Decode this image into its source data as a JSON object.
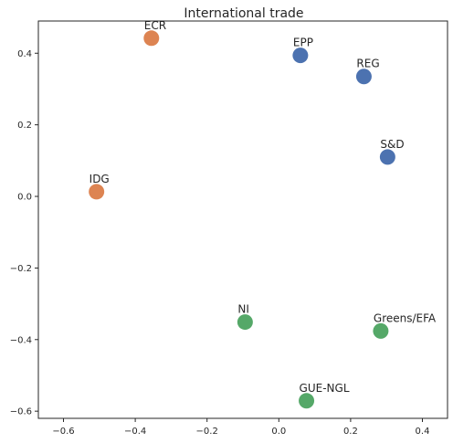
{
  "chart_data": {
    "type": "scatter",
    "title": "International trade",
    "xlabel": "",
    "ylabel": "",
    "xlim": [
      -0.67,
      0.47
    ],
    "ylim": [
      -0.62,
      0.49
    ],
    "x_ticks": [
      "−0.6",
      "−0.4",
      "−0.2",
      "0.0",
      "0.2",
      "0.4"
    ],
    "x_tick_values": [
      -0.6,
      -0.4,
      -0.2,
      0.0,
      0.2,
      0.4
    ],
    "y_ticks": [
      "−0.6",
      "−0.4",
      "−0.2",
      "0.0",
      "0.2",
      "0.4"
    ],
    "y_tick_values": [
      -0.6,
      -0.4,
      -0.2,
      0.0,
      0.2,
      0.4
    ],
    "grid": false,
    "points": [
      {
        "label": "ECR",
        "x": -0.355,
        "y": 0.442,
        "color": "#dd8452"
      },
      {
        "label": "EPP",
        "x": 0.06,
        "y": 0.394,
        "color": "#4c72b0"
      },
      {
        "label": "REG",
        "x": 0.237,
        "y": 0.335,
        "color": "#4c72b0"
      },
      {
        "label": "S&D",
        "x": 0.303,
        "y": 0.11,
        "color": "#4c72b0"
      },
      {
        "label": "IDG",
        "x": -0.508,
        "y": 0.013,
        "color": "#dd8452"
      },
      {
        "label": "NI",
        "x": -0.094,
        "y": -0.351,
        "color": "#55a868"
      },
      {
        "label": "Greens/EFA",
        "x": 0.284,
        "y": -0.376,
        "color": "#55a868"
      },
      {
        "label": "GUE-NGL",
        "x": 0.077,
        "y": -0.571,
        "color": "#55a868"
      }
    ]
  }
}
